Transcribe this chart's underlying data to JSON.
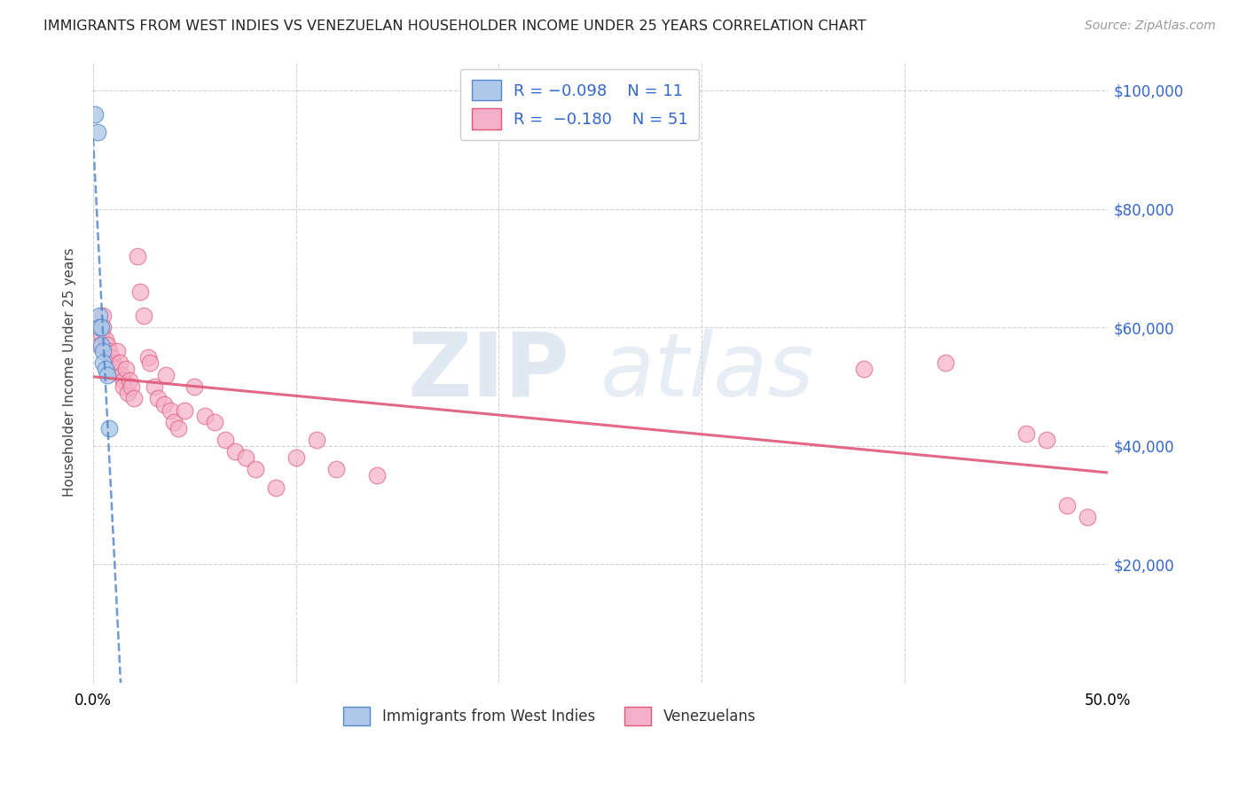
{
  "title": "IMMIGRANTS FROM WEST INDIES VS VENEZUELAN HOUSEHOLDER INCOME UNDER 25 YEARS CORRELATION CHART",
  "source": "Source: ZipAtlas.com",
  "ylabel": "Householder Income Under 25 years",
  "xlim": [
    0.0,
    0.5
  ],
  "ylim": [
    0,
    105000
  ],
  "color_blue": "#adc8e8",
  "color_pink": "#f4b0c8",
  "color_blue_line": "#5588cc",
  "color_pink_line": "#e05878",
  "watermark_zip": "ZIP",
  "watermark_atlas": "atlas",
  "west_indies_x": [
    0.001,
    0.002,
    0.003,
    0.003,
    0.004,
    0.004,
    0.005,
    0.005,
    0.006,
    0.007,
    0.008
  ],
  "west_indies_y": [
    96000,
    93000,
    62000,
    60000,
    60000,
    57000,
    56000,
    54000,
    53000,
    52000,
    43000
  ],
  "venezuelan_x": [
    0.003,
    0.004,
    0.005,
    0.005,
    0.006,
    0.007,
    0.008,
    0.009,
    0.01,
    0.011,
    0.012,
    0.013,
    0.014,
    0.015,
    0.015,
    0.016,
    0.017,
    0.018,
    0.019,
    0.02,
    0.022,
    0.023,
    0.025,
    0.027,
    0.028,
    0.03,
    0.032,
    0.035,
    0.036,
    0.038,
    0.04,
    0.042,
    0.045,
    0.05,
    0.055,
    0.06,
    0.065,
    0.07,
    0.075,
    0.08,
    0.09,
    0.1,
    0.11,
    0.12,
    0.14,
    0.38,
    0.42,
    0.46,
    0.47,
    0.48,
    0.49
  ],
  "venezuelan_y": [
    57000,
    59000,
    62000,
    60000,
    58000,
    57000,
    56000,
    55000,
    54000,
    53000,
    56000,
    54000,
    52000,
    51000,
    50000,
    53000,
    49000,
    51000,
    50000,
    48000,
    72000,
    66000,
    62000,
    55000,
    54000,
    50000,
    48000,
    47000,
    52000,
    46000,
    44000,
    43000,
    46000,
    50000,
    45000,
    44000,
    41000,
    39000,
    38000,
    36000,
    33000,
    38000,
    41000,
    36000,
    35000,
    53000,
    54000,
    42000,
    41000,
    30000,
    28000
  ]
}
